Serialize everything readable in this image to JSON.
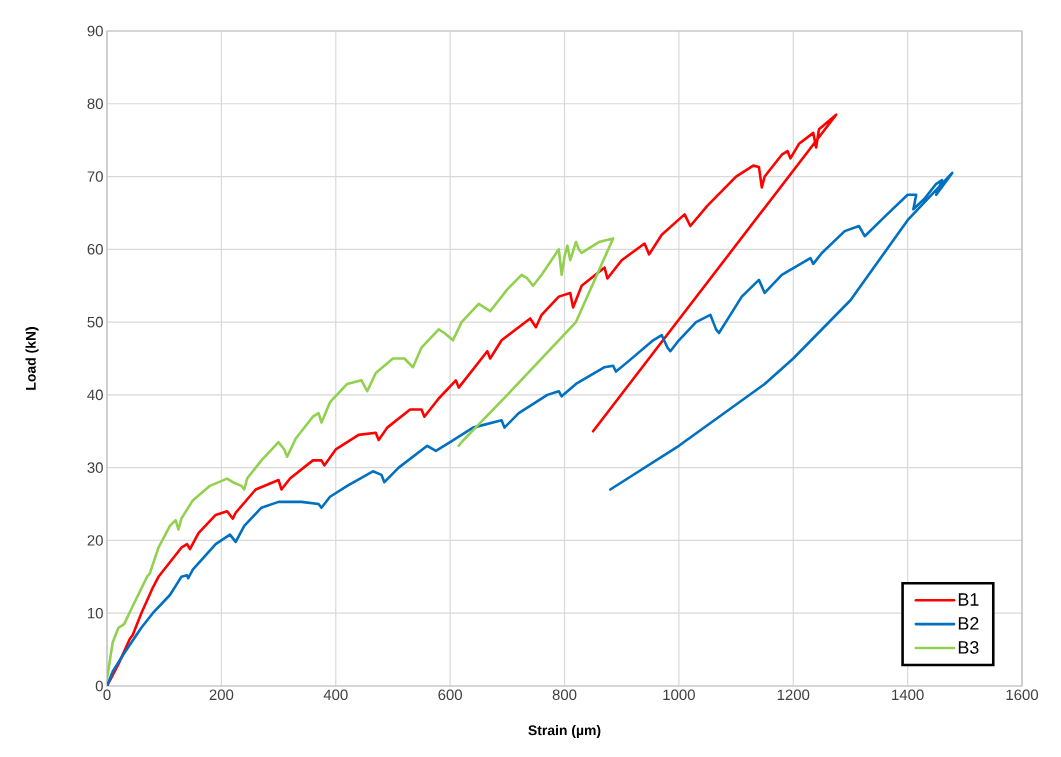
{
  "chart_data": {
    "type": "line",
    "xlabel": "Strain (µm)",
    "ylabel": "Load (kN)",
    "xlim": [
      0,
      1600
    ],
    "xticks": [
      0,
      200,
      400,
      600,
      800,
      1000,
      1200,
      1400,
      1600
    ],
    "ylim": [
      0,
      90
    ],
    "yticks": [
      0,
      10,
      20,
      30,
      40,
      50,
      60,
      70,
      80,
      90
    ],
    "grid": true,
    "legend": "bottom right",
    "marker": "none",
    "line_style": "solid",
    "series": [
      {
        "name": "B1",
        "color": "#ff0000",
        "x": [
          0,
          20,
          40,
          45,
          60,
          80,
          90,
          100,
          130,
          140,
          145,
          160,
          190,
          210,
          215,
          220,
          225,
          260,
          300,
          305,
          320,
          360,
          375,
          380,
          400,
          440,
          470,
          475,
          490,
          530,
          550,
          555,
          580,
          610,
          615,
          640,
          665,
          670,
          690,
          740,
          750,
          760,
          790,
          810,
          815,
          830,
          870,
          875,
          900,
          940,
          948,
          970,
          1010,
          1020,
          1050,
          1100,
          1130,
          1140,
          1145,
          1150,
          1180,
          1190,
          1195,
          1210,
          1235,
          1240,
          1245,
          1275,
          850
        ],
        "values": [
          0,
          3,
          6.5,
          7,
          10,
          13.5,
          15,
          16,
          19,
          19.5,
          18.8,
          21,
          23.5,
          24,
          23.5,
          23,
          23.8,
          27,
          28.3,
          27,
          28.5,
          31,
          31,
          30.3,
          32.5,
          34.5,
          34.8,
          33.8,
          35.5,
          38,
          38,
          37,
          39.5,
          42,
          41,
          43.5,
          46,
          45,
          47.5,
          50.5,
          49.3,
          51,
          53.5,
          54,
          52,
          55,
          57.5,
          56,
          58.5,
          60.8,
          59.3,
          62,
          64.8,
          63.2,
          66,
          70,
          71.5,
          71.3,
          68.5,
          70,
          73,
          73.5,
          72.5,
          74.5,
          76,
          74,
          76.5,
          78.5,
          35
        ]
      },
      {
        "name": "B2",
        "color": "#0070c0",
        "x": [
          0,
          10,
          30,
          60,
          80,
          110,
          130,
          140,
          142,
          150,
          190,
          215,
          225,
          240,
          270,
          300,
          340,
          370,
          375,
          390,
          420,
          465,
          480,
          485,
          510,
          560,
          575,
          600,
          640,
          690,
          695,
          720,
          770,
          790,
          795,
          820,
          870,
          885,
          890,
          910,
          955,
          970,
          980,
          985,
          1000,
          1030,
          1055,
          1065,
          1070,
          1090,
          1110,
          1140,
          1150,
          1180,
          1230,
          1235,
          1250,
          1290,
          1315,
          1325,
          1360,
          1400,
          1415,
          1410,
          1430,
          1450,
          1460,
          1450,
          1478,
          1400,
          1300,
          1200,
          1150,
          1000,
          880
        ],
        "values": [
          0,
          2,
          4.5,
          8,
          10,
          12.5,
          15,
          15.2,
          14.8,
          16,
          19.5,
          20.8,
          19.8,
          22,
          24.5,
          25.3,
          25.3,
          25,
          24.5,
          26,
          27.5,
          29.5,
          29,
          28,
          30,
          33,
          32.3,
          33.5,
          35.5,
          36.5,
          35.5,
          37.5,
          40,
          40.5,
          39.8,
          41.5,
          43.8,
          44,
          43.2,
          44.5,
          47.5,
          48.2,
          46.5,
          46,
          47.5,
          50,
          51,
          49,
          48.5,
          51,
          53.5,
          55.8,
          54,
          56.5,
          58.8,
          58,
          59.5,
          62.5,
          63.2,
          61.8,
          64.5,
          67.5,
          67.5,
          65.5,
          67,
          69,
          69.5,
          67.5,
          70.5,
          64,
          53,
          45,
          41.5,
          33,
          27
        ]
      },
      {
        "name": "B3",
        "color": "#92d050",
        "x": [
          0,
          10,
          20,
          30,
          45,
          70,
          75,
          90,
          110,
          120,
          125,
          130,
          150,
          180,
          210,
          220,
          235,
          240,
          245,
          270,
          300,
          310,
          315,
          330,
          360,
          370,
          375,
          390,
          420,
          445,
          455,
          470,
          500,
          520,
          535,
          550,
          580,
          590,
          605,
          620,
          650,
          670,
          700,
          725,
          735,
          745,
          760,
          790,
          795,
          800,
          805,
          810,
          820,
          825,
          830,
          860,
          885,
          820,
          700,
          620,
          615
        ],
        "values": [
          1,
          6,
          8,
          8.5,
          11,
          15,
          15.5,
          19,
          22,
          22.8,
          21.5,
          23,
          25.5,
          27.5,
          28.5,
          28,
          27.5,
          27,
          28.5,
          31,
          33.5,
          32.5,
          31.5,
          34,
          37,
          37.5,
          36.2,
          39,
          41.5,
          42,
          40.5,
          43,
          45,
          45,
          43.8,
          46.5,
          49,
          48.5,
          47.5,
          50,
          52.5,
          51.5,
          54.5,
          56.5,
          56,
          55,
          56.5,
          60,
          56.5,
          59,
          60.5,
          58.5,
          61,
          60,
          59.5,
          61,
          61.5,
          50,
          40,
          33.5,
          33
        ]
      }
    ]
  }
}
